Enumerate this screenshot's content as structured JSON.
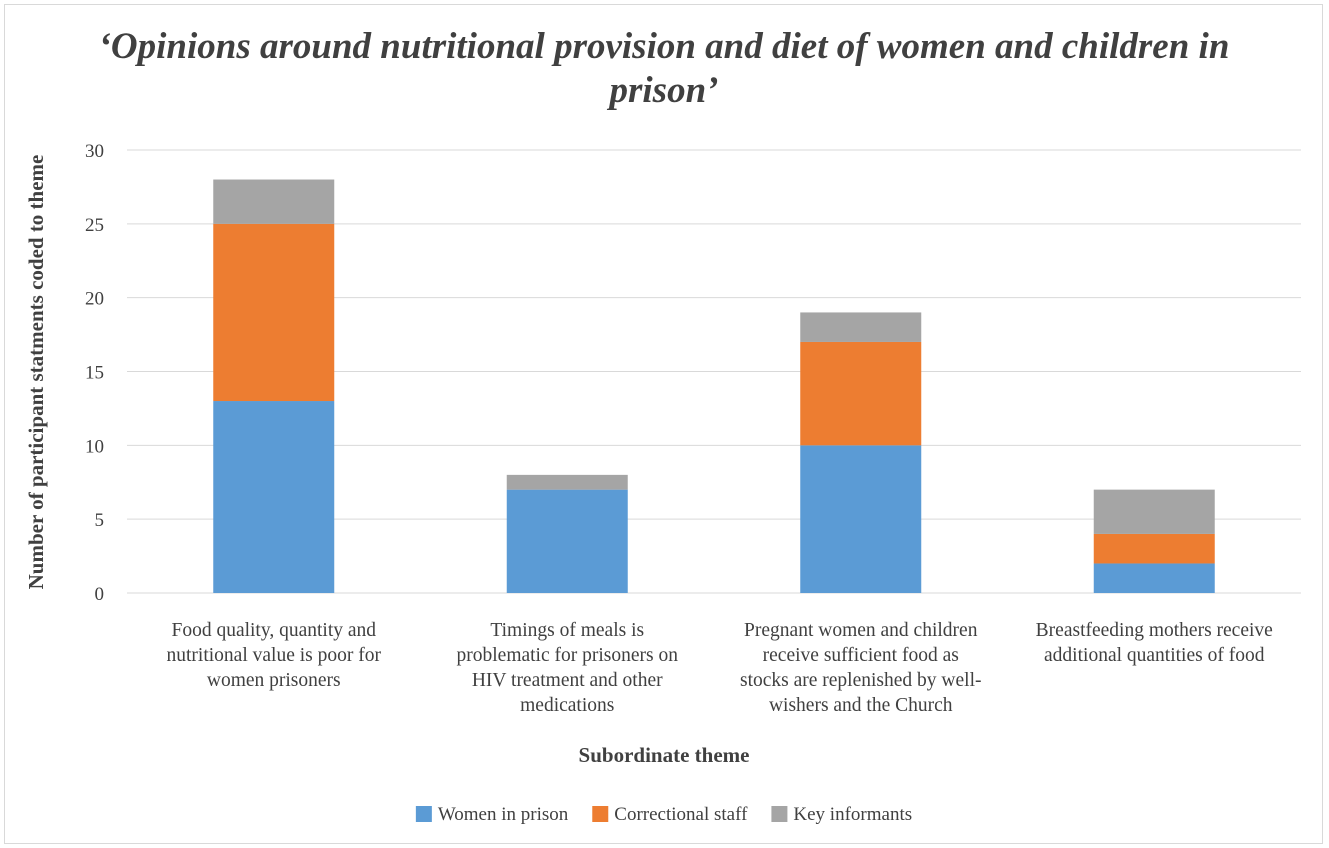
{
  "chart_data": {
    "type": "bar",
    "stacked": true,
    "title": "‘Opinions around nutritional provision and diet of women and children in prison’",
    "xlabel": "Subordinate theme",
    "ylabel": "Number of participant statments coded to theme",
    "ylim": [
      0,
      30
    ],
    "yticks": [
      0,
      5,
      10,
      15,
      20,
      25,
      30
    ],
    "grid": true,
    "legend_position": "bottom",
    "categories": [
      "Food quality, quantity and nutritional value is poor for women prisoners",
      "Timings of meals is problematic for prisoners on HIV treatment and other medications",
      "Pregnant women and children receive sufficient food as stocks are replenished by well-wishers and the Church",
      "Breastfeeding mothers receive additional quantities of food"
    ],
    "category_lines": [
      [
        "Food quality, quantity and",
        "nutritional value is poor for",
        "women prisoners"
      ],
      [
        "Timings of meals is",
        "problematic for prisoners on",
        "HIV treatment and other",
        "medications"
      ],
      [
        "Pregnant women and children",
        "receive sufficient food as",
        "stocks are replenished by well-",
        "wishers and the Church"
      ],
      [
        "Breastfeeding mothers receive",
        "additional quantities of food"
      ]
    ],
    "series": [
      {
        "name": "Women in prison",
        "color": "#5b9bd5",
        "values": [
          13,
          7,
          10,
          2
        ]
      },
      {
        "name": "Correctional staff",
        "color": "#ed7d31",
        "values": [
          12,
          0,
          7,
          2
        ]
      },
      {
        "name": "Key informants",
        "color": "#a5a5a5",
        "values": [
          3,
          1,
          2,
          3
        ]
      }
    ]
  }
}
